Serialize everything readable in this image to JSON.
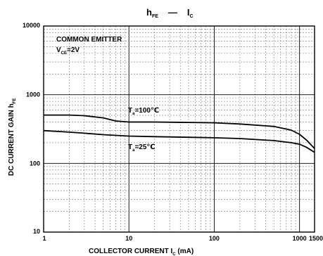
{
  "chart_data": {
    "type": "line",
    "title": {
      "main": "h",
      "main_sub": "FE",
      "dash": "—",
      "right": "I",
      "right_sub": "C"
    },
    "annotation": {
      "line1": "COMMON EMITTER",
      "line2_main": "V",
      "line2_sub": "CE",
      "line2_rest": "=2V"
    },
    "xlabel": {
      "main": "COLLECTOR CURRENT   I",
      "sub": "C",
      "rest": "  (mA)"
    },
    "ylabel": {
      "main": "DC CURRENT GAIN   h",
      "sub": "FE"
    },
    "x_scale": "log",
    "y_scale": "log",
    "xlim": [
      1,
      1500
    ],
    "ylim": [
      10,
      10000
    ],
    "x_ticks": [
      {
        "value": 1,
        "label": "1"
      },
      {
        "value": 10,
        "label": "10"
      },
      {
        "value": 100,
        "label": "100"
      },
      {
        "value": 1000,
        "label": "1000"
      },
      {
        "value": 1500,
        "label": "1500"
      }
    ],
    "y_ticks": [
      {
        "value": 10,
        "label": "10"
      },
      {
        "value": 100,
        "label": "100"
      },
      {
        "value": 1000,
        "label": "1000"
      },
      {
        "value": 10000,
        "label": "10000"
      }
    ],
    "grid": true,
    "series": [
      {
        "label": {
          "main": "T",
          "sub": "a",
          "rest": "=100℃"
        },
        "color": "#000000",
        "x": [
          1,
          2,
          3,
          5,
          7,
          10,
          20,
          50,
          100,
          200,
          500,
          800,
          1000,
          1200,
          1500
        ],
        "y": [
          505,
          505,
          495,
          460,
          415,
          400,
          400,
          395,
          390,
          375,
          345,
          305,
          265,
          220,
          165
        ]
      },
      {
        "label": {
          "main": "T",
          "sub": "a",
          "rest": "=25℃"
        },
        "color": "#000000",
        "x": [
          1,
          2,
          3,
          5,
          10,
          20,
          50,
          100,
          200,
          500,
          800,
          1000,
          1200,
          1500
        ],
        "y": [
          300,
          285,
          275,
          262,
          250,
          245,
          240,
          236,
          230,
          215,
          200,
          190,
          172,
          145
        ]
      }
    ]
  }
}
